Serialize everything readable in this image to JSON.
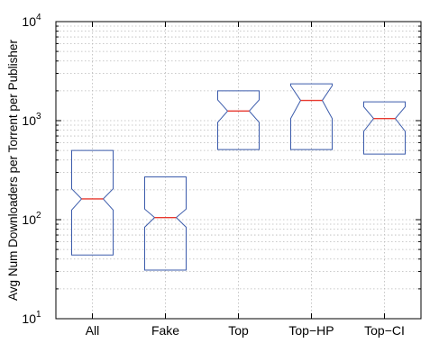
{
  "chart_data": {
    "type": "box",
    "ylabel": "Avg Num Downloaders per Torrent per Publisher",
    "xlabel": "",
    "y_scale": "log",
    "ylim": [
      10,
      10000
    ],
    "grid": true,
    "y_ticks": [
      10,
      100,
      1000,
      10000
    ],
    "categories": [
      "All",
      "Fake",
      "Top",
      "Top−HP",
      "Top−CI"
    ],
    "boxes": [
      {
        "category": "All",
        "whisker_low": 44,
        "q1": 44,
        "median": 162,
        "q3": 500,
        "whisker_high": 500,
        "notch_low": 125,
        "notch_high": 205
      },
      {
        "category": "Fake",
        "whisker_low": 31,
        "q1": 31,
        "median": 105,
        "q3": 270,
        "whisker_high": 270,
        "notch_low": 84,
        "notch_high": 128
      },
      {
        "category": "Top",
        "whisker_low": 510,
        "q1": 510,
        "median": 1250,
        "q3": 2000,
        "whisker_high": 2000,
        "notch_low": 960,
        "notch_high": 1620
      },
      {
        "category": "Top−HP",
        "whisker_low": 510,
        "q1": 510,
        "median": 1600,
        "q3": 2350,
        "whisker_high": 2350,
        "notch_low": 1050,
        "notch_high": 2250
      },
      {
        "category": "Top−CI",
        "whisker_low": 460,
        "q1": 460,
        "median": 1050,
        "q3": 1550,
        "whisker_high": 1550,
        "notch_low": 780,
        "notch_high": 1380
      }
    ],
    "colors": {
      "box": "#3b5bab",
      "median": "#e8382e",
      "grid": "#b8b8b8"
    }
  }
}
